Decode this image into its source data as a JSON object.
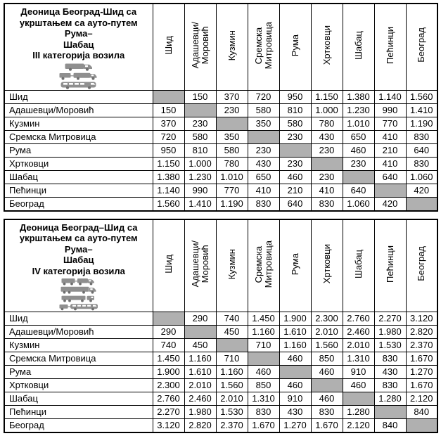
{
  "colors": {
    "diagonal_fill": "#b0b0b0",
    "border": "#000000",
    "icon_gray": "#8f8f8f",
    "icon_dark_gray": "#6e6e6e"
  },
  "stations": [
    "Шид",
    "Адашевци/Моровић",
    "Кузмин",
    "Сремска Митровица",
    "Рума",
    "Хртковци",
    "Шабац",
    "Пећинци",
    "Београд"
  ],
  "tables": [
    {
      "title": "Деоница Београд-Шид са\nукрштањем са ауто-путем Рума–\nШабац\nIII категорија возила",
      "category": "III",
      "icon_names": [
        "delivery-van-icon",
        "van-with-trailer-icon",
        "minibus-icon"
      ],
      "column_headers": [
        "Шид",
        "Адашевци/\nМоровић",
        "Кузмин",
        "Сремска\nМитровица",
        "Рума",
        "Хртковци",
        "Шабац",
        "Пећинци",
        "Београд"
      ],
      "rows": [
        {
          "label": "Шид",
          "values": [
            null,
            "150",
            "370",
            "720",
            "950",
            "1.150",
            "1.380",
            "1.140",
            "1.560"
          ]
        },
        {
          "label": "Адашевци/Моровић",
          "values": [
            "150",
            null,
            "230",
            "580",
            "810",
            "1.000",
            "1.230",
            "990",
            "1.410"
          ]
        },
        {
          "label": "Кузмин",
          "values": [
            "370",
            "230",
            null,
            "350",
            "580",
            "780",
            "1.010",
            "770",
            "1.190"
          ]
        },
        {
          "label": "Сремска Митровица",
          "values": [
            "720",
            "580",
            "350",
            null,
            "230",
            "430",
            "650",
            "410",
            "830"
          ]
        },
        {
          "label": "Рума",
          "values": [
            "950",
            "810",
            "580",
            "230",
            null,
            "230",
            "460",
            "210",
            "640"
          ]
        },
        {
          "label": "Хртковци",
          "values": [
            "1.150",
            "1.000",
            "780",
            "430",
            "230",
            null,
            "230",
            "410",
            "830"
          ]
        },
        {
          "label": "Шабац",
          "values": [
            "1.380",
            "1.230",
            "1.010",
            "650",
            "460",
            "230",
            null,
            "640",
            "1.060"
          ]
        },
        {
          "label": "Пећинци",
          "values": [
            "1.140",
            "990",
            "770",
            "410",
            "210",
            "410",
            "640",
            null,
            "420"
          ]
        },
        {
          "label": "Београд",
          "values": [
            "1.560",
            "1.410",
            "1.190",
            "830",
            "640",
            "830",
            "1.060",
            "420",
            null
          ]
        }
      ]
    },
    {
      "title": "Деоница Београд–Шид са\nукрштањем са ауто-путем Рума–\nШабац\nIV категорија возила",
      "category": "IV",
      "icon_names": [
        "truck-with-trailer-icon",
        "heavy-truck-icon",
        "semi-trailer-truck-icon",
        "bus-with-trailer-icon"
      ],
      "column_headers": [
        "Шид",
        "Адашевци/\nМоровић",
        "Кузмин",
        "Сремска\nМитровица",
        "Рума",
        "Хртковци",
        "Шабац",
        "Пећинци",
        "Београд"
      ],
      "rows": [
        {
          "label": "Шид",
          "values": [
            null,
            "290",
            "740",
            "1.450",
            "1.900",
            "2.300",
            "2.760",
            "2.270",
            "3.120"
          ]
        },
        {
          "label": "Адашевци/Моровић",
          "values": [
            "290",
            null,
            "450",
            "1.160",
            "1.610",
            "2.010",
            "2.460",
            "1.980",
            "2.820"
          ]
        },
        {
          "label": "Кузмин",
          "values": [
            "740",
            "450",
            null,
            "710",
            "1.160",
            "1.560",
            "2.010",
            "1.530",
            "2.370"
          ]
        },
        {
          "label": "Сремска Митровица",
          "values": [
            "1.450",
            "1.160",
            "710",
            null,
            "460",
            "850",
            "1.310",
            "830",
            "1.670"
          ]
        },
        {
          "label": "Рума",
          "values": [
            "1.900",
            "1.610",
            "1.160",
            "460",
            null,
            "460",
            "910",
            "430",
            "1.270"
          ]
        },
        {
          "label": "Хртковци",
          "values": [
            "2.300",
            "2.010",
            "1.560",
            "850",
            "460",
            null,
            "460",
            "830",
            "1.670"
          ]
        },
        {
          "label": "Шабац",
          "values": [
            "2.760",
            "2.460",
            "2.010",
            "1.310",
            "910",
            "460",
            null,
            "1.280",
            "2.120"
          ]
        },
        {
          "label": "Пећинци",
          "values": [
            "2.270",
            "1.980",
            "1.530",
            "830",
            "430",
            "830",
            "1.280",
            null,
            "840"
          ]
        },
        {
          "label": "Београд",
          "values": [
            "3.120",
            "2.820",
            "2.370",
            "1.670",
            "1.270",
            "1.670",
            "2.120",
            "840",
            null
          ]
        }
      ]
    }
  ]
}
